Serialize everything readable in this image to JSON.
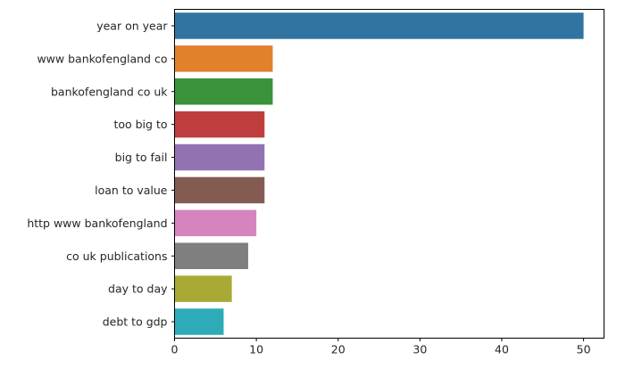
{
  "chart_data": {
    "type": "bar",
    "orientation": "horizontal",
    "title": "",
    "xlabel": "",
    "ylabel": "",
    "categories": [
      "year on year",
      "www bankofengland co",
      "bankofengland co uk",
      "too big to",
      "big to fail",
      "loan to value",
      "http www bankofengland",
      "co uk publications",
      "day to day",
      "debt to gdp"
    ],
    "values": [
      50,
      12,
      12,
      11,
      11,
      11,
      10,
      9,
      7,
      6
    ],
    "colors": [
      "#3274a1",
      "#e1812c",
      "#3a923a",
      "#c03d3e",
      "#9372b2",
      "#845b53",
      "#d684bd",
      "#7f7f7f",
      "#a9aa35",
      "#2eabb8"
    ],
    "xlim": [
      0,
      52.5
    ],
    "xticks": [
      0,
      10,
      20,
      30,
      40,
      50
    ],
    "xtick_labels": [
      "0",
      "10",
      "20",
      "30",
      "40",
      "50"
    ],
    "grid": false,
    "legend": "none"
  }
}
